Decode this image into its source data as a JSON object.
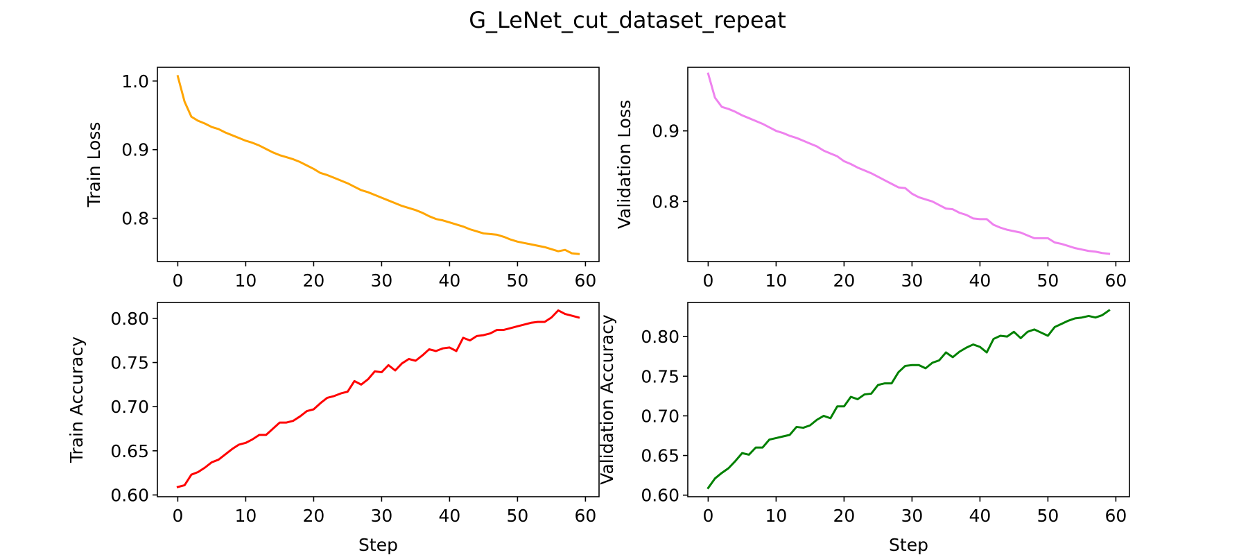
{
  "figure": {
    "title": "G_LeNet_cut_dataset_repeat"
  },
  "chart_data": [
    {
      "type": "line",
      "id": "train_loss",
      "color": "#ffa500",
      "xlabel": "",
      "ylabel": "Train Loss",
      "xlim": [
        -3,
        62
      ],
      "ylim": [
        0.737,
        1.02
      ],
      "xticks": [
        0,
        10,
        20,
        30,
        40,
        50,
        60
      ],
      "xtick_labels": [
        "0",
        "10",
        "20",
        "30",
        "40",
        "50",
        "60"
      ],
      "yticks": [
        0.8,
        0.9,
        1.0
      ],
      "ytick_labels": [
        "0.8",
        "0.9",
        "1.0"
      ],
      "grid": false,
      "series": [
        {
          "x": [
            0,
            1,
            2,
            3,
            4,
            5,
            6,
            7,
            8,
            9,
            10,
            11,
            12,
            13,
            14,
            15,
            16,
            17,
            18,
            19,
            20,
            21,
            22,
            23,
            24,
            25,
            26,
            27,
            28,
            29,
            30,
            31,
            32,
            33,
            34,
            35,
            36,
            37,
            38,
            39,
            40,
            41,
            42,
            43,
            44,
            45,
            46,
            47,
            48,
            49,
            50,
            51,
            52,
            53,
            54,
            55,
            56,
            57,
            58,
            59
          ],
          "values": [
            1.007,
            0.97,
            0.948,
            0.942,
            0.938,
            0.933,
            0.93,
            0.925,
            0.921,
            0.917,
            0.913,
            0.91,
            0.906,
            0.901,
            0.896,
            0.892,
            0.889,
            0.886,
            0.882,
            0.877,
            0.872,
            0.866,
            0.863,
            0.859,
            0.855,
            0.851,
            0.846,
            0.841,
            0.838,
            0.834,
            0.83,
            0.826,
            0.822,
            0.818,
            0.815,
            0.812,
            0.808,
            0.803,
            0.799,
            0.797,
            0.794,
            0.791,
            0.788,
            0.784,
            0.781,
            0.778,
            0.777,
            0.776,
            0.773,
            0.769,
            0.766,
            0.764,
            0.762,
            0.76,
            0.758,
            0.755,
            0.752,
            0.754,
            0.749,
            0.748
          ]
        }
      ]
    },
    {
      "type": "line",
      "id": "validation_loss",
      "color": "#ee82ee",
      "xlabel": "",
      "ylabel": "Validation Loss",
      "xlim": [
        -3,
        62
      ],
      "ylim": [
        0.715,
        0.99
      ],
      "xticks": [
        0,
        10,
        20,
        30,
        40,
        50,
        60
      ],
      "xtick_labels": [
        "0",
        "10",
        "20",
        "30",
        "40",
        "50",
        "60"
      ],
      "yticks": [
        0.8,
        0.9
      ],
      "ytick_labels": [
        "0.8",
        "0.9"
      ],
      "grid": false,
      "series": [
        {
          "x": [
            0,
            1,
            2,
            3,
            4,
            5,
            6,
            7,
            8,
            9,
            10,
            11,
            12,
            13,
            14,
            15,
            16,
            17,
            18,
            19,
            20,
            21,
            22,
            23,
            24,
            25,
            26,
            27,
            28,
            29,
            30,
            31,
            32,
            33,
            34,
            35,
            36,
            37,
            38,
            39,
            40,
            41,
            42,
            43,
            44,
            45,
            46,
            47,
            48,
            49,
            50,
            51,
            52,
            53,
            54,
            55,
            56,
            57,
            58,
            59
          ],
          "values": [
            0.981,
            0.947,
            0.934,
            0.931,
            0.927,
            0.922,
            0.918,
            0.914,
            0.91,
            0.905,
            0.9,
            0.897,
            0.893,
            0.89,
            0.886,
            0.882,
            0.878,
            0.872,
            0.868,
            0.864,
            0.857,
            0.853,
            0.848,
            0.844,
            0.84,
            0.835,
            0.83,
            0.825,
            0.82,
            0.819,
            0.811,
            0.806,
            0.803,
            0.8,
            0.795,
            0.79,
            0.789,
            0.784,
            0.781,
            0.776,
            0.775,
            0.775,
            0.767,
            0.763,
            0.76,
            0.758,
            0.756,
            0.752,
            0.748,
            0.748,
            0.748,
            0.742,
            0.74,
            0.737,
            0.734,
            0.732,
            0.73,
            0.729,
            0.727,
            0.726
          ]
        }
      ]
    },
    {
      "type": "line",
      "id": "train_accuracy",
      "color": "#ff0000",
      "xlabel": "Step",
      "ylabel": "Train Accuracy",
      "xlim": [
        -3,
        62
      ],
      "ylim": [
        0.598,
        0.818
      ],
      "xticks": [
        0,
        10,
        20,
        30,
        40,
        50,
        60
      ],
      "xtick_labels": [
        "0",
        "10",
        "20",
        "30",
        "40",
        "50",
        "60"
      ],
      "yticks": [
        0.6,
        0.65,
        0.7,
        0.75,
        0.8
      ],
      "ytick_labels": [
        "0.60",
        "0.65",
        "0.70",
        "0.75",
        "0.80"
      ],
      "grid": false,
      "series": [
        {
          "x": [
            0,
            1,
            2,
            3,
            4,
            5,
            6,
            7,
            8,
            9,
            10,
            11,
            12,
            13,
            14,
            15,
            16,
            17,
            18,
            19,
            20,
            21,
            22,
            23,
            24,
            25,
            26,
            27,
            28,
            29,
            30,
            31,
            32,
            33,
            34,
            35,
            36,
            37,
            38,
            39,
            40,
            41,
            42,
            43,
            44,
            45,
            46,
            47,
            48,
            49,
            50,
            51,
            52,
            53,
            54,
            55,
            56,
            57,
            58,
            59
          ],
          "values": [
            0.609,
            0.611,
            0.623,
            0.626,
            0.631,
            0.637,
            0.64,
            0.646,
            0.652,
            0.657,
            0.659,
            0.663,
            0.668,
            0.668,
            0.675,
            0.682,
            0.682,
            0.684,
            0.689,
            0.695,
            0.697,
            0.704,
            0.71,
            0.712,
            0.715,
            0.717,
            0.729,
            0.725,
            0.731,
            0.74,
            0.739,
            0.747,
            0.741,
            0.749,
            0.754,
            0.752,
            0.758,
            0.765,
            0.763,
            0.766,
            0.767,
            0.763,
            0.778,
            0.775,
            0.78,
            0.781,
            0.783,
            0.787,
            0.787,
            0.789,
            0.791,
            0.793,
            0.795,
            0.796,
            0.796,
            0.801,
            0.809,
            0.805,
            0.803,
            0.801
          ]
        }
      ]
    },
    {
      "type": "line",
      "id": "validation_accuracy",
      "color": "#008000",
      "xlabel": "Step",
      "ylabel": "Validation Accuracy",
      "xlim": [
        -3,
        62
      ],
      "ylim": [
        0.598,
        0.843
      ],
      "xticks": [
        0,
        10,
        20,
        30,
        40,
        50,
        60
      ],
      "xtick_labels": [
        "0",
        "10",
        "20",
        "30",
        "40",
        "50",
        "60"
      ],
      "yticks": [
        0.6,
        0.65,
        0.7,
        0.75,
        0.8
      ],
      "ytick_labels": [
        "0.60",
        "0.65",
        "0.70",
        "0.75",
        "0.80"
      ],
      "grid": false,
      "series": [
        {
          "x": [
            0,
            1,
            2,
            3,
            4,
            5,
            6,
            7,
            8,
            9,
            10,
            11,
            12,
            13,
            14,
            15,
            16,
            17,
            18,
            19,
            20,
            21,
            22,
            23,
            24,
            25,
            26,
            27,
            28,
            29,
            30,
            31,
            32,
            33,
            34,
            35,
            36,
            37,
            38,
            39,
            40,
            41,
            42,
            43,
            44,
            45,
            46,
            47,
            48,
            49,
            50,
            51,
            52,
            53,
            54,
            55,
            56,
            57,
            58,
            59
          ],
          "values": [
            0.609,
            0.621,
            0.628,
            0.634,
            0.643,
            0.653,
            0.651,
            0.66,
            0.66,
            0.67,
            0.672,
            0.674,
            0.676,
            0.686,
            0.685,
            0.688,
            0.695,
            0.7,
            0.697,
            0.712,
            0.712,
            0.724,
            0.721,
            0.727,
            0.728,
            0.739,
            0.741,
            0.741,
            0.755,
            0.763,
            0.764,
            0.764,
            0.76,
            0.767,
            0.77,
            0.78,
            0.774,
            0.781,
            0.786,
            0.79,
            0.787,
            0.78,
            0.797,
            0.801,
            0.8,
            0.806,
            0.798,
            0.806,
            0.809,
            0.805,
            0.801,
            0.812,
            0.816,
            0.82,
            0.823,
            0.824,
            0.826,
            0.824,
            0.827,
            0.833
          ]
        }
      ]
    }
  ]
}
